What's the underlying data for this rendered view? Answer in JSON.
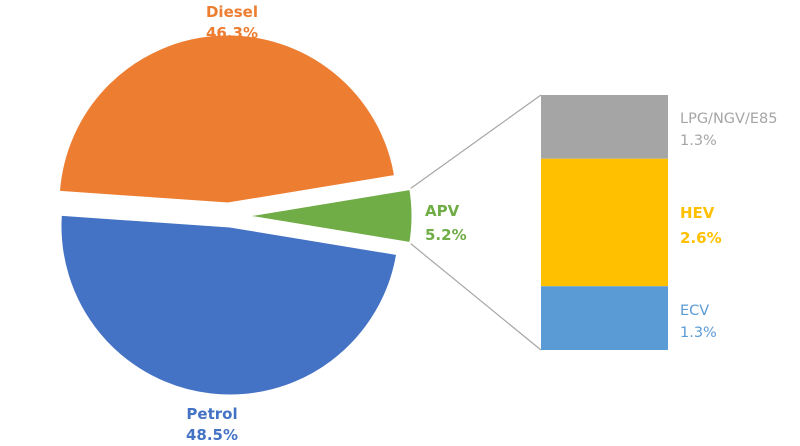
{
  "chart_data": {
    "type": "pie",
    "title": "",
    "slices": [
      {
        "label": "Diesel",
        "value": 46.3,
        "value_label": "46.3%",
        "color": "#ED7D31"
      },
      {
        "label": "Petrol",
        "value": 48.5,
        "value_label": "48.5%",
        "color": "#4472C4"
      },
      {
        "label": "APV",
        "value": 5.2,
        "value_label": "5.2%",
        "color": "#70AD47"
      }
    ],
    "breakdown": {
      "of": "APV",
      "type": "stacked-bar",
      "segments": [
        {
          "label": "LPG/NGV/E85",
          "value": 1.3,
          "value_label": "1.3%",
          "color": "#A5A5A5"
        },
        {
          "label": "HEV",
          "value": 2.6,
          "value_label": "2.6%",
          "color": "#FFC000"
        },
        {
          "label": "ECV",
          "value": 1.3,
          "value_label": "1.3%",
          "color": "#5B9BD5"
        }
      ]
    },
    "connector_color": "#A6A6A6"
  }
}
